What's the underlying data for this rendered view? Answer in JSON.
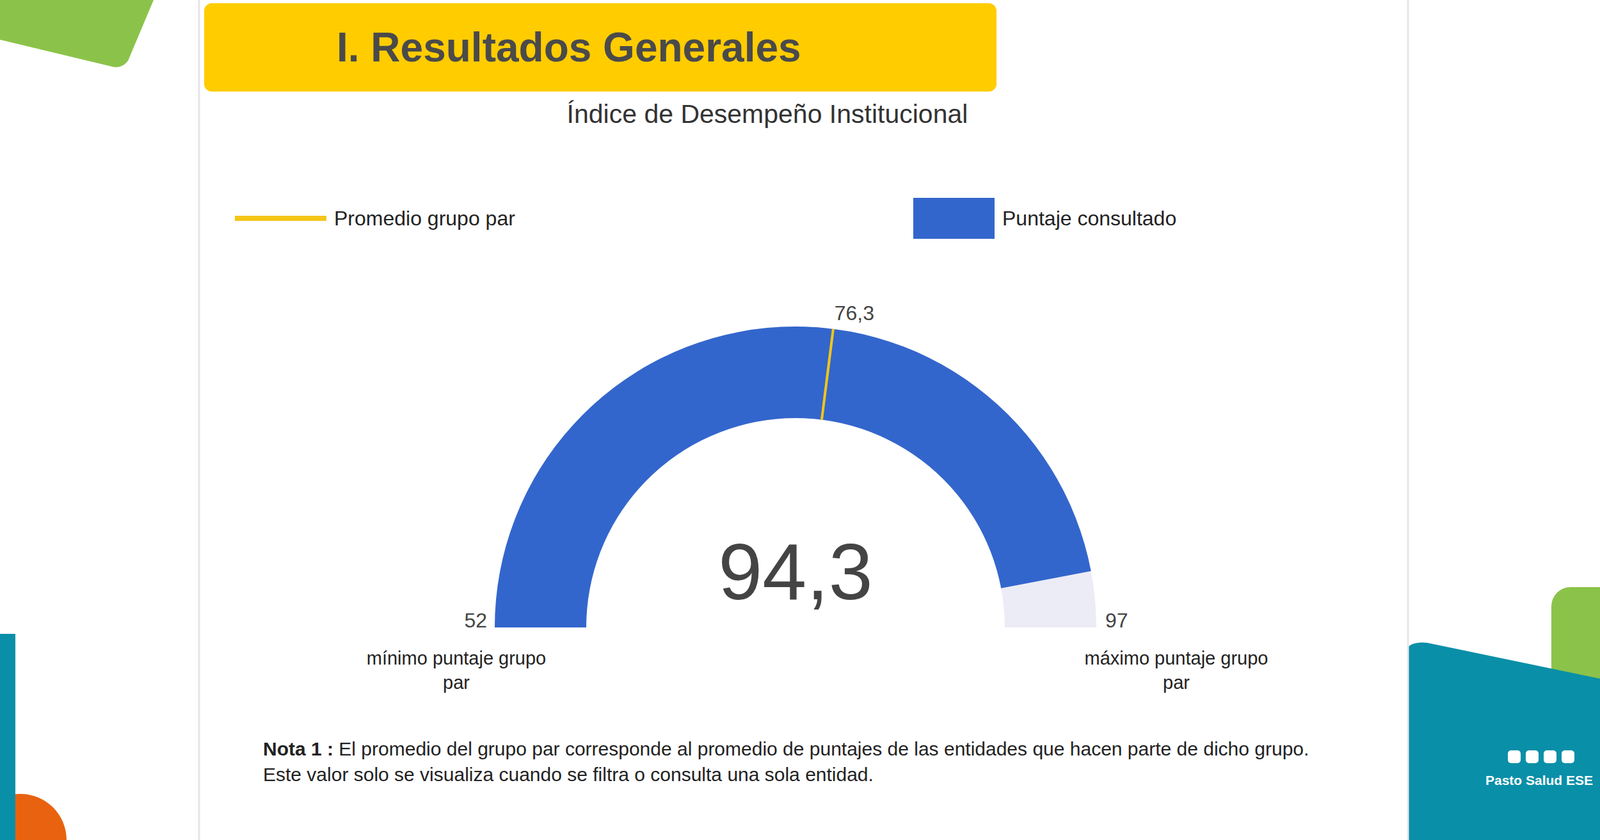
{
  "header": "I. Resultados Generales",
  "chart_data": {
    "type": "gauge",
    "title": "Índice de Desempeño Institucional",
    "ylim": [
      52,
      97
    ],
    "yticks": [
      52,
      97
    ],
    "tick_annotations": [
      "mínimo puntaje grupo par",
      "máximo puntaje grupo par"
    ],
    "legend": "top",
    "series": [
      {
        "name": "Promedio grupo par",
        "type": "line",
        "marker": "line",
        "color": "#f5c518",
        "values": [
          76.3
        ],
        "value_labels": [
          "76,3"
        ]
      },
      {
        "name": "Puntaje consultado",
        "type": "bar",
        "marker": "square",
        "color": "#3366cc",
        "values": [
          94.3
        ],
        "value_labels": [
          "94,3"
        ]
      }
    ]
  },
  "note": {
    "label": "Nota 1 :",
    "text": "El promedio del grupo par corresponde al promedio de puntajes de las entidades que hacen parte de dicho grupo.  Este valor solo se visualiza cuando se filtra o consulta una sola entidad."
  },
  "footer": "Pasto Salud ESE"
}
